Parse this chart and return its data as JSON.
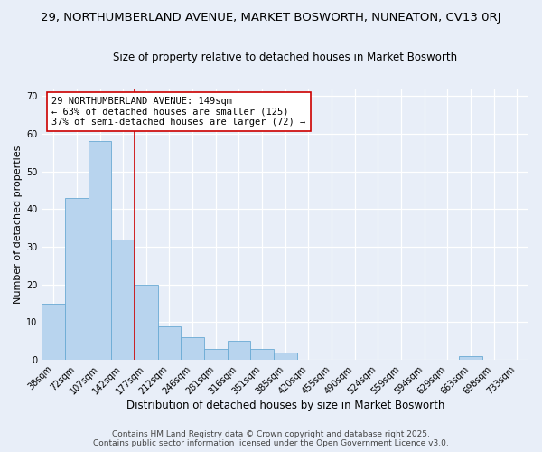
{
  "title1": "29, NORTHUMBERLAND AVENUE, MARKET BOSWORTH, NUNEATON, CV13 0RJ",
  "title2": "Size of property relative to detached houses in Market Bosworth",
  "xlabel": "Distribution of detached houses by size in Market Bosworth",
  "ylabel": "Number of detached properties",
  "bar_values": [
    15,
    43,
    58,
    32,
    20,
    9,
    6,
    3,
    5,
    3,
    2,
    0,
    0,
    0,
    0,
    0,
    0,
    0,
    1,
    0,
    0
  ],
  "bar_labels": [
    "38sqm",
    "72sqm",
    "107sqm",
    "142sqm",
    "177sqm",
    "212sqm",
    "246sqm",
    "281sqm",
    "316sqm",
    "351sqm",
    "385sqm",
    "420sqm",
    "455sqm",
    "490sqm",
    "524sqm",
    "559sqm",
    "594sqm",
    "629sqm",
    "663sqm",
    "698sqm",
    "733sqm"
  ],
  "bar_color": "#b8d4ee",
  "bar_edge_color": "#6aaad4",
  "vline_x": 3.5,
  "vline_color": "#cc0000",
  "annotation_text": "29 NORTHUMBERLAND AVENUE: 149sqm\n← 63% of detached houses are smaller (125)\n37% of semi-detached houses are larger (72) →",
  "annotation_box_color": "white",
  "annotation_box_edge": "#cc0000",
  "ylim": [
    0,
    72
  ],
  "yticks": [
    0,
    10,
    20,
    30,
    40,
    50,
    60,
    70
  ],
  "footer1": "Contains HM Land Registry data © Crown copyright and database right 2025.",
  "footer2": "Contains public sector information licensed under the Open Government Licence v3.0.",
  "bg_color": "#e8eef8",
  "title1_fontsize": 9.5,
  "title2_fontsize": 8.5,
  "xlabel_fontsize": 8.5,
  "ylabel_fontsize": 8,
  "tick_fontsize": 7,
  "footer_fontsize": 6.5,
  "annot_fontsize": 7.5
}
